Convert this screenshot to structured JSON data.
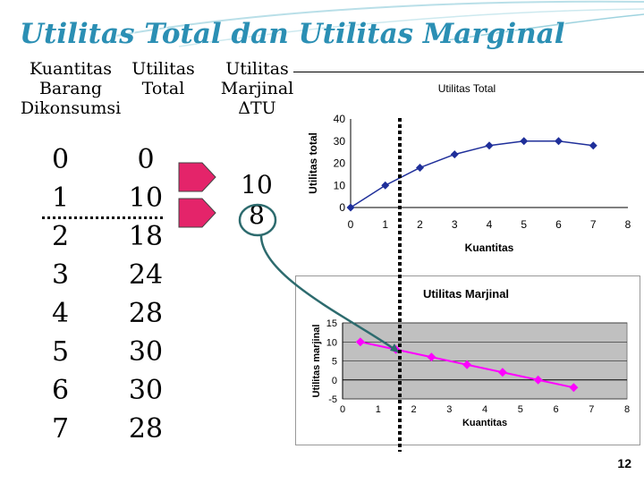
{
  "title": "Utilitas Total dan Utilitas Marginal",
  "table": {
    "headers": {
      "quantity": [
        "Kuantitas",
        "Barang",
        "Dikonsumsi"
      ],
      "total": [
        "Utilitas",
        "Total"
      ],
      "marginal": [
        "Utilitas",
        "Marjinal",
        "ΔTU"
      ]
    },
    "quantity": [
      "0",
      "1",
      "2",
      "3",
      "4",
      "5",
      "6",
      "7"
    ],
    "total": [
      "0",
      "10",
      "18",
      "24",
      "28",
      "30",
      "30",
      "28"
    ],
    "marginal": [
      "10",
      "8"
    ]
  },
  "page_number": "12",
  "colors": {
    "title": "#2b8fb4",
    "arrow": "#e4246a",
    "total_line": "#1f2f9a",
    "marginal_line": "#ff00ff",
    "connector": "#2d6b6e",
    "plot_bg": "#c0c0c0"
  },
  "chart_data": [
    {
      "type": "line",
      "title": "Utilitas Total",
      "xlabel": "Kuantitas",
      "ylabel": "Utilitas total",
      "x_ticks": [
        "0",
        "1",
        "2",
        "3",
        "4",
        "5",
        "6",
        "7",
        "8"
      ],
      "y_ticks": [
        "0",
        "10",
        "20",
        "30",
        "40"
      ],
      "xlim": [
        0,
        8
      ],
      "ylim": [
        0,
        40
      ],
      "grid": false,
      "x": [
        0,
        1,
        2,
        3,
        4,
        5,
        6,
        7
      ],
      "y": [
        0,
        10,
        18,
        24,
        28,
        30,
        30,
        28
      ]
    },
    {
      "type": "line",
      "title": "Utilitas Marjinal",
      "xlabel": "Kuantitas",
      "ylabel": "Utilitas marjinal",
      "x_ticks": [
        "0",
        "1",
        "2",
        "3",
        "4",
        "5",
        "6",
        "7",
        "8"
      ],
      "y_ticks": [
        "-5",
        "0",
        "5",
        "10",
        "15"
      ],
      "xlim": [
        0,
        8
      ],
      "ylim": [
        -5,
        15
      ],
      "grid": true,
      "x": [
        0.5,
        1.5,
        2.5,
        3.5,
        4.5,
        5.5,
        6.5
      ],
      "y": [
        10,
        8,
        6,
        4,
        2,
        0,
        -2
      ]
    }
  ]
}
